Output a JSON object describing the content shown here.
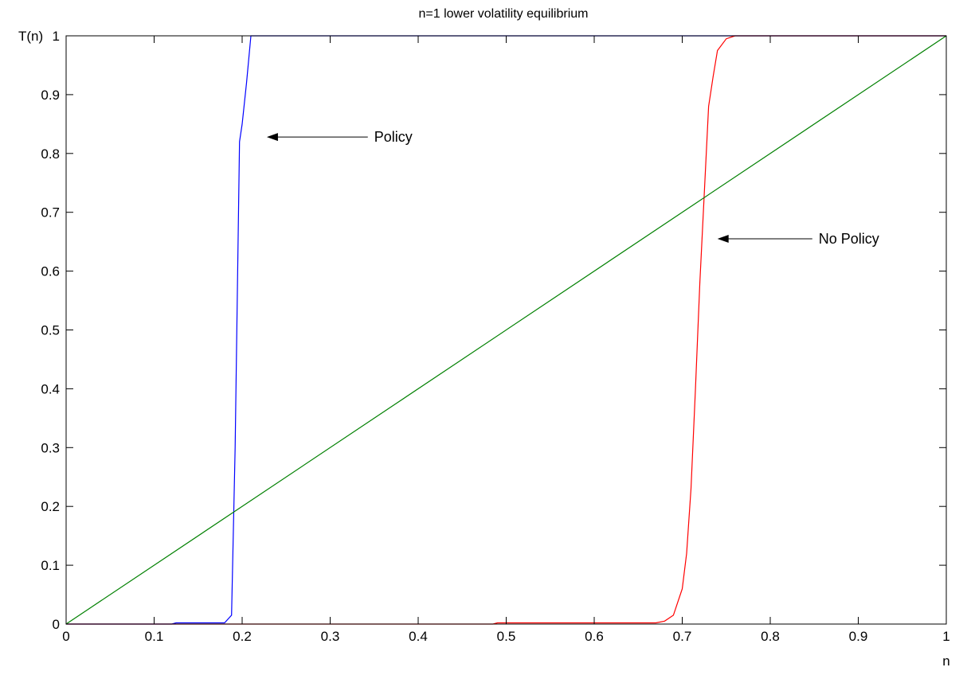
{
  "chart_data": {
    "type": "line",
    "title": "n=1 lower volatility equilibrium",
    "xlabel": "n",
    "ylabel": "T(n)",
    "xlim": [
      0,
      1
    ],
    "ylim": [
      0,
      1
    ],
    "xticks": [
      "0",
      "0.1",
      "0.2",
      "0.3",
      "0.4",
      "0.5",
      "0.6",
      "0.7",
      "0.8",
      "0.9",
      "1"
    ],
    "yticks": [
      "0",
      "0.1",
      "0.2",
      "0.3",
      "0.4",
      "0.5",
      "0.6",
      "0.7",
      "0.8",
      "0.9",
      "1"
    ],
    "grid": false,
    "series": [
      {
        "color": "#0000ff",
        "x": [
          0,
          0.12,
          0.125,
          0.18,
          0.188,
          0.192,
          0.197,
          0.2,
          0.205,
          0.21,
          0.215,
          1
        ],
        "y": [
          0,
          0,
          0.002,
          0.002,
          0.015,
          0.3,
          0.82,
          0.85,
          0.92,
          1,
          1,
          1
        ]
      },
      {
        "color": "#ff0000",
        "x": [
          0,
          0.485,
          0.49,
          0.67,
          0.68,
          0.69,
          0.7,
          0.705,
          0.71,
          0.715,
          0.72,
          0.725,
          0.73,
          0.735,
          0.74,
          0.75,
          0.76,
          0.77,
          1
        ],
        "y": [
          0,
          0,
          0.002,
          0.002,
          0.005,
          0.015,
          0.06,
          0.12,
          0.23,
          0.4,
          0.58,
          0.73,
          0.88,
          0.93,
          0.975,
          0.995,
          1,
          1,
          1
        ]
      },
      {
        "color": "#008000",
        "x": [
          0,
          1
        ],
        "y": [
          0,
          1
        ]
      }
    ],
    "annotations": [
      {
        "text": "Policy",
        "x": 0.35,
        "y": 0.828,
        "arrow_to": [
          0.228,
          0.828
        ]
      },
      {
        "text": "No Policy",
        "x": 0.855,
        "y": 0.655,
        "arrow_to": [
          0.74,
          0.655
        ]
      }
    ]
  }
}
